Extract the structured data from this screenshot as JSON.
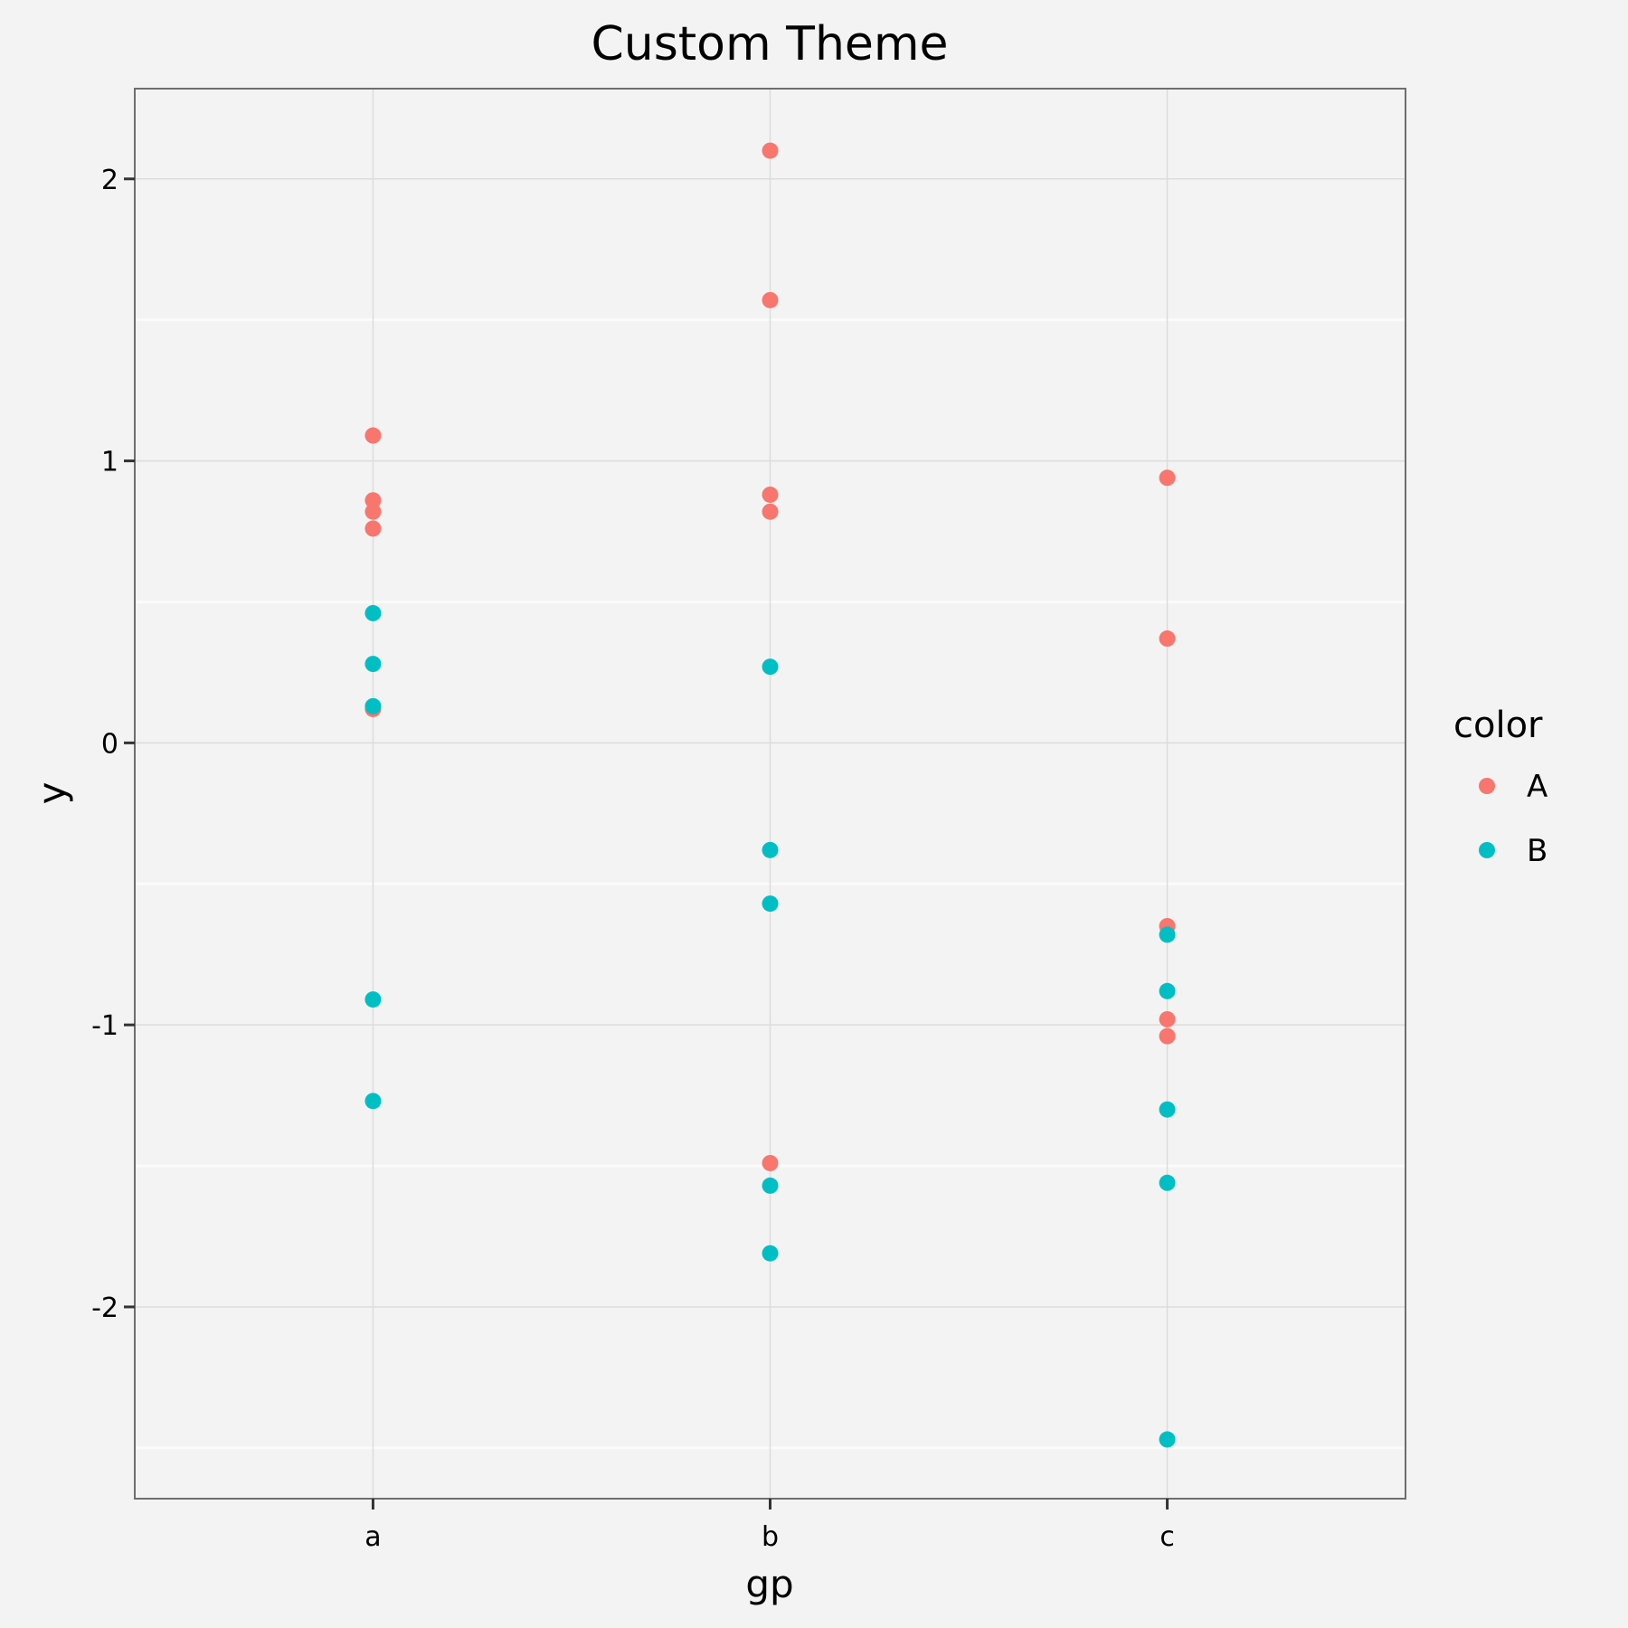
{
  "chart_data": {
    "type": "scatter",
    "title": "Custom Theme",
    "xlabel": "gp",
    "ylabel": "y",
    "categories": [
      "a",
      "b",
      "c"
    ],
    "y_ticks": [
      -2,
      -1,
      0,
      1,
      2
    ],
    "y_tick_labels": [
      "-2",
      "-1",
      "0",
      "1",
      "2"
    ],
    "ylim": [
      -2.68,
      2.32
    ],
    "grid": true,
    "legend": {
      "title": "color",
      "placement": "right",
      "entries": [
        {
          "label": "A",
          "color": "#F8766D"
        },
        {
          "label": "B",
          "color": "#00BFC4"
        }
      ]
    },
    "series": [
      {
        "name": "A",
        "color": "#F8766D",
        "points": [
          {
            "x": "a",
            "y": 1.09
          },
          {
            "x": "a",
            "y": 0.86
          },
          {
            "x": "a",
            "y": 0.82
          },
          {
            "x": "a",
            "y": 0.76
          },
          {
            "x": "a",
            "y": 0.12
          },
          {
            "x": "b",
            "y": 2.1
          },
          {
            "x": "b",
            "y": 1.57
          },
          {
            "x": "b",
            "y": 0.88
          },
          {
            "x": "b",
            "y": 0.82
          },
          {
            "x": "b",
            "y": -1.49
          },
          {
            "x": "c",
            "y": 0.94
          },
          {
            "x": "c",
            "y": 0.37
          },
          {
            "x": "c",
            "y": -0.65
          },
          {
            "x": "c",
            "y": -0.98
          },
          {
            "x": "c",
            "y": -1.04
          }
        ]
      },
      {
        "name": "B",
        "color": "#00BFC4",
        "points": [
          {
            "x": "a",
            "y": 0.46
          },
          {
            "x": "a",
            "y": 0.28
          },
          {
            "x": "a",
            "y": 0.13
          },
          {
            "x": "a",
            "y": -0.91
          },
          {
            "x": "a",
            "y": -1.27
          },
          {
            "x": "b",
            "y": 0.27
          },
          {
            "x": "b",
            "y": -0.38
          },
          {
            "x": "b",
            "y": -0.57
          },
          {
            "x": "b",
            "y": -1.57
          },
          {
            "x": "b",
            "y": -1.81
          },
          {
            "x": "c",
            "y": -0.68
          },
          {
            "x": "c",
            "y": -0.88
          },
          {
            "x": "c",
            "y": -1.3
          },
          {
            "x": "c",
            "y": -1.56
          },
          {
            "x": "c",
            "y": -2.47
          }
        ]
      }
    ]
  }
}
